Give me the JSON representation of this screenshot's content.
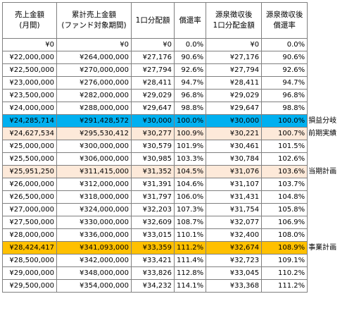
{
  "headers": [
    [
      "売上金額",
      "(月間)"
    ],
    [
      "累計売上金額",
      "(ファンド対象期間)"
    ],
    [
      "1口分配額",
      ""
    ],
    [
      "償還率",
      ""
    ],
    [
      "源泉徴収後",
      "1口分配金額"
    ],
    [
      "源泉徴収後",
      "償還率"
    ]
  ],
  "rows": [
    {
      "cells": [
        "¥0",
        "¥0",
        "¥0",
        "0.0%",
        "¥0",
        "0.0%"
      ],
      "note": "",
      "style": ""
    },
    {
      "cells": [
        "¥22,000,000",
        "¥264,000,000",
        "¥27,176",
        "90.6%",
        "¥27,176",
        "90.6%"
      ],
      "note": "",
      "style": ""
    },
    {
      "cells": [
        "¥22,500,000",
        "¥270,000,000",
        "¥27,794",
        "92.6%",
        "¥27,794",
        "92.6%"
      ],
      "note": "",
      "style": ""
    },
    {
      "cells": [
        "¥23,000,000",
        "¥276,000,000",
        "¥28,411",
        "94.7%",
        "¥28,411",
        "94.7%"
      ],
      "note": "",
      "style": ""
    },
    {
      "cells": [
        "¥23,500,000",
        "¥282,000,000",
        "¥29,029",
        "96.8%",
        "¥29,029",
        "96.8%"
      ],
      "note": "",
      "style": ""
    },
    {
      "cells": [
        "¥24,000,000",
        "¥288,000,000",
        "¥29,647",
        "98.8%",
        "¥29,647",
        "98.8%"
      ],
      "note": "",
      "style": ""
    },
    {
      "cells": [
        "¥24,285,714",
        "¥291,428,572",
        "¥30,000",
        "100.0%",
        "¥30,000",
        "100.0%"
      ],
      "note": "損益分岐",
      "style": "blue"
    },
    {
      "cells": [
        "¥24,627,534",
        "¥295,530,412",
        "¥30,277",
        "100.9%",
        "¥30,221",
        "100.7%"
      ],
      "note": "前期実績",
      "style": "pink"
    },
    {
      "cells": [
        "¥25,000,000",
        "¥300,000,000",
        "¥30,579",
        "101.9%",
        "¥30,461",
        "101.5%"
      ],
      "note": "",
      "style": ""
    },
    {
      "cells": [
        "¥25,500,000",
        "¥306,000,000",
        "¥30,985",
        "103.3%",
        "¥30,784",
        "102.6%"
      ],
      "note": "",
      "style": ""
    },
    {
      "cells": [
        "¥25,951,250",
        "¥311,415,000",
        "¥31,352",
        "104.5%",
        "¥31,076",
        "103.6%"
      ],
      "note": "当期計画",
      "style": "pink"
    },
    {
      "cells": [
        "¥26,000,000",
        "¥312,000,000",
        "¥31,391",
        "104.6%",
        "¥31,107",
        "103.7%"
      ],
      "note": "",
      "style": ""
    },
    {
      "cells": [
        "¥26,500,000",
        "¥318,000,000",
        "¥31,797",
        "106.0%",
        "¥31,431",
        "104.8%"
      ],
      "note": "",
      "style": ""
    },
    {
      "cells": [
        "¥27,000,000",
        "¥324,000,000",
        "¥32,203",
        "107.3%",
        "¥31,754",
        "105.8%"
      ],
      "note": "",
      "style": ""
    },
    {
      "cells": [
        "¥27,500,000",
        "¥330,000,000",
        "¥32,609",
        "108.7%",
        "¥32,077",
        "106.9%"
      ],
      "note": "",
      "style": ""
    },
    {
      "cells": [
        "¥28,000,000",
        "¥336,000,000",
        "¥33,015",
        "110.1%",
        "¥32,400",
        "108.0%"
      ],
      "note": "",
      "style": ""
    },
    {
      "cells": [
        "¥28,424,417",
        "¥341,093,000",
        "¥33,359",
        "111.2%",
        "¥32,674",
        "108.9%"
      ],
      "note": "事業計画",
      "style": "orange"
    },
    {
      "cells": [
        "¥28,500,000",
        "¥342,000,000",
        "¥33,421",
        "111.4%",
        "¥32,723",
        "109.1%"
      ],
      "note": "",
      "style": ""
    },
    {
      "cells": [
        "¥29,000,000",
        "¥348,000,000",
        "¥33,826",
        "112.8%",
        "¥33,045",
        "110.2%"
      ],
      "note": "",
      "style": ""
    },
    {
      "cells": [
        "¥29,500,000",
        "¥354,000,000",
        "¥34,232",
        "114.1%",
        "¥33,368",
        "111.2%"
      ],
      "note": "",
      "style": ""
    }
  ]
}
